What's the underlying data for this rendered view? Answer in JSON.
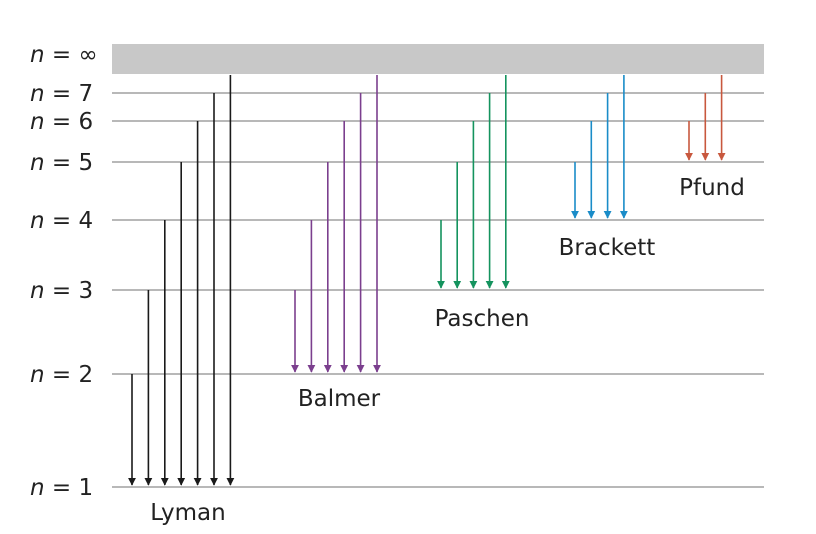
{
  "levels": [
    {
      "n": "1",
      "label_var": "n",
      "label_eq": " = ",
      "label_val": "1"
    },
    {
      "n": "2",
      "label_var": "n",
      "label_eq": " = ",
      "label_val": "2"
    },
    {
      "n": "3",
      "label_var": "n",
      "label_eq": " = ",
      "label_val": "3"
    },
    {
      "n": "4",
      "label_var": "n",
      "label_eq": " = ",
      "label_val": "4"
    },
    {
      "n": "5",
      "label_var": "n",
      "label_eq": " = ",
      "label_val": "5"
    },
    {
      "n": "6",
      "label_var": "n",
      "label_eq": " = ",
      "label_val": "6"
    },
    {
      "n": "7",
      "label_var": "n",
      "label_eq": " = ",
      "label_val": "7"
    },
    {
      "n": "∞",
      "label_var": "n",
      "label_eq": " = ",
      "label_val": "∞"
    }
  ],
  "series": [
    {
      "name": "Lyman",
      "final_level": 1,
      "color": "#1a1a1a"
    },
    {
      "name": "Balmer",
      "final_level": 2,
      "color": "#7b3f8e"
    },
    {
      "name": "Paschen",
      "final_level": 3,
      "color": "#14935e"
    },
    {
      "name": "Brackett",
      "final_level": 4,
      "color": "#1a8cc8"
    },
    {
      "name": "Pfund",
      "final_level": 5,
      "color": "#c8583e"
    }
  ],
  "continuum_color": "#c8c8c8",
  "level_line_color": "#a0a0a0"
}
